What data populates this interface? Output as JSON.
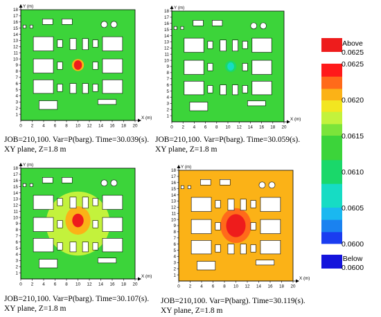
{
  "chart_data": [
    {
      "type": "heatmap",
      "panel": "a",
      "xlabel": "X (m)",
      "ylabel": "Y (m)",
      "xlim": [
        0,
        20
      ],
      "ylim": [
        0,
        18
      ],
      "x_ticks": [
        "0",
        "2",
        "4",
        "6",
        "8",
        "10",
        "12",
        "14",
        "16",
        "18",
        "20"
      ],
      "y_ticks": [
        "1",
        "2",
        "3",
        "4",
        "5",
        "6",
        "7",
        "8",
        "9",
        "10",
        "11",
        "12",
        "13",
        "14",
        "15",
        "16",
        "17",
        "18"
      ],
      "background_value": 0.0613,
      "peak": {
        "x": 10,
        "y": 9,
        "value": 0.0626,
        "radius": 0.7
      },
      "caption_line1": "JOB=210,100. Var=P(barg). Time=30.039(s).",
      "caption_line2": "XY plane, Z=1.8 m"
    },
    {
      "type": "heatmap",
      "panel": "b",
      "xlabel": "X (m)",
      "ylabel": "Y (m)",
      "xlim": [
        0,
        20
      ],
      "ylim": [
        0,
        18
      ],
      "x_ticks": [
        "0",
        "2",
        "4",
        "6",
        "8",
        "10",
        "12",
        "14",
        "16",
        "18",
        "20"
      ],
      "y_ticks": [
        "1",
        "2",
        "3",
        "4",
        "5",
        "6",
        "7",
        "8",
        "9",
        "10",
        "11",
        "12",
        "13",
        "14",
        "15",
        "16",
        "17",
        "18"
      ],
      "background_value": 0.0612,
      "peak": {
        "x": 10.5,
        "y": 9,
        "value": 0.0607,
        "radius": 0.6
      },
      "caption_line1": "JOB=210,100. Var=P(barg). Time=30.059(s).",
      "caption_line2": "XY plane, Z=1.8 m"
    },
    {
      "type": "heatmap",
      "panel": "c",
      "xlabel": "X (m)",
      "ylabel": "Y (m)",
      "xlim": [
        0,
        20
      ],
      "ylim": [
        0,
        18
      ],
      "x_ticks": [
        "0",
        "2",
        "4",
        "6",
        "8",
        "10",
        "12",
        "14",
        "16",
        "18",
        "20"
      ],
      "y_ticks": [
        "1",
        "2",
        "3",
        "4",
        "5",
        "6",
        "7",
        "8",
        "9",
        "10",
        "11",
        "12",
        "13",
        "14",
        "15",
        "16",
        "17",
        "18"
      ],
      "background_value": 0.0612,
      "middle_value": 0.0617,
      "inner_value": 0.0621,
      "peak": {
        "x": 10,
        "y": 9.5,
        "value": 0.0626,
        "radius": 1.0
      },
      "caption_line1": "JOB=210,100. Var=P(barg). Time=30.107(s).",
      "caption_line2": "XY plane, Z=1.8 m"
    },
    {
      "type": "heatmap",
      "panel": "d",
      "xlabel": "X (m)",
      "ylabel": "Y (m)",
      "xlim": [
        0,
        20
      ],
      "ylim": [
        0,
        18
      ],
      "x_ticks": [
        "0",
        "2",
        "4",
        "6",
        "8",
        "10",
        "12",
        "14",
        "16",
        "18",
        "20"
      ],
      "y_ticks": [
        "1",
        "2",
        "3",
        "4",
        "5",
        "6",
        "7",
        "8",
        "9",
        "10",
        "11",
        "12",
        "13",
        "14",
        "15",
        "16",
        "17",
        "18"
      ],
      "background_value": 0.062,
      "inner_value": 0.0622,
      "peak": {
        "x": 10,
        "y": 9,
        "value": 0.0626,
        "radius": 1.7
      },
      "caption_line1": "JOB=210,100. Var=P(barg). Time=30.119(s).",
      "caption_line2": "XY plane, Z=1.8 m"
    }
  ],
  "colorbar": {
    "unit": "barg",
    "above_label": "Above",
    "above_value": "0.0625",
    "below_label": "Below",
    "below_value": "0.0600",
    "tick_labels": [
      "0.0625",
      "0.0620",
      "0.0615",
      "0.0610",
      "0.0605",
      "0.0600"
    ],
    "bands": [
      {
        "lo": 0.06232,
        "hi": 0.0625,
        "color": "#ff1a1a"
      },
      {
        "lo": 0.06215,
        "hi": 0.06232,
        "color": "#ff6a1a"
      },
      {
        "lo": 0.06199,
        "hi": 0.06215,
        "color": "#fbb217"
      },
      {
        "lo": 0.06183,
        "hi": 0.06199,
        "color": "#f2e620"
      },
      {
        "lo": 0.06166,
        "hi": 0.06183,
        "color": "#c3f23c"
      },
      {
        "lo": 0.0615,
        "hi": 0.06166,
        "color": "#7be43a"
      },
      {
        "lo": 0.06116,
        "hi": 0.0615,
        "color": "#3cd43a"
      },
      {
        "lo": 0.06083,
        "hi": 0.06116,
        "color": "#1ad86a"
      },
      {
        "lo": 0.0605,
        "hi": 0.06083,
        "color": "#16dcc4"
      },
      {
        "lo": 0.06033,
        "hi": 0.0605,
        "color": "#1ab8f0"
      },
      {
        "lo": 0.06016,
        "hi": 0.06033,
        "color": "#1a82f0"
      },
      {
        "lo": 0.06,
        "hi": 0.06016,
        "color": "#1a3cf0"
      }
    ],
    "above_color": "#ee1c1c",
    "below_color": "#1414dc"
  },
  "obstacles": {
    "solid_color": "#ffffff",
    "outline_color": "#000000",
    "rects": [
      [
        0.4,
        15.0,
        0.5,
        0.5
      ],
      [
        1.6,
        15.0,
        0.5,
        0.5
      ],
      [
        3.8,
        15.6,
        1.8,
        0.9
      ],
      [
        7.2,
        15.6,
        1.8,
        0.9
      ],
      [
        2.2,
        11.3,
        3.5,
        2.3
      ],
      [
        6.4,
        11.9,
        0.9,
        1.2
      ],
      [
        8.6,
        11.5,
        1.1,
        1.8
      ],
      [
        10.8,
        11.5,
        1.0,
        1.8
      ],
      [
        12.6,
        11.9,
        0.9,
        1.2
      ],
      [
        14.3,
        11.3,
        3.5,
        2.3
      ],
      [
        2.2,
        7.7,
        3.5,
        2.3
      ],
      [
        6.4,
        8.3,
        0.9,
        1.2
      ],
      [
        12.6,
        8.3,
        0.9,
        1.2
      ],
      [
        14.3,
        7.7,
        3.5,
        2.3
      ],
      [
        2.2,
        4.4,
        3.5,
        2.2
      ],
      [
        6.4,
        4.7,
        0.9,
        1.2
      ],
      [
        8.6,
        4.4,
        1.1,
        1.6
      ],
      [
        10.8,
        4.4,
        1.0,
        1.6
      ],
      [
        12.6,
        4.7,
        0.9,
        1.2
      ],
      [
        14.3,
        4.4,
        3.5,
        2.2
      ],
      [
        3.2,
        1.8,
        3.2,
        1.4
      ],
      [
        13.5,
        2.6,
        3.2,
        0.8
      ]
    ],
    "circles": [
      [
        14.6,
        15.6,
        0.55
      ],
      [
        16.3,
        15.6,
        0.55
      ]
    ]
  }
}
